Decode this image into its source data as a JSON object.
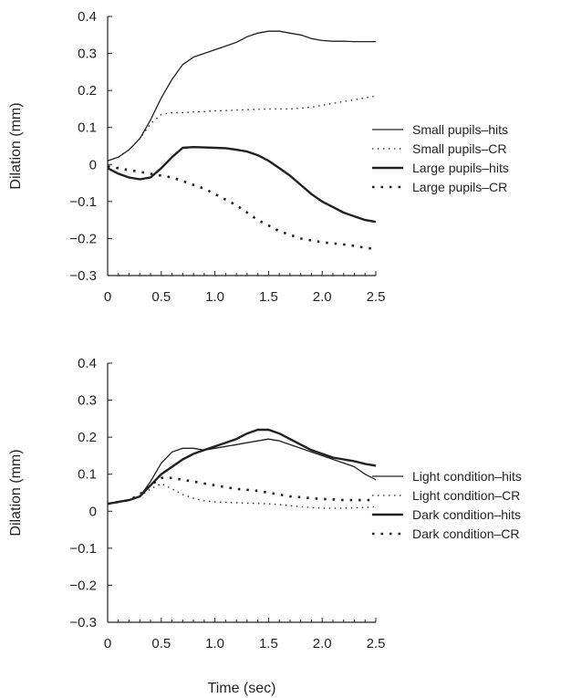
{
  "chart_data": [
    {
      "type": "line",
      "title": "",
      "xlabel": "",
      "ylabel": "Dilation (mm)",
      "xlim": [
        0,
        2.5
      ],
      "ylim": [
        -0.3,
        0.4
      ],
      "xticks": [
        "0",
        "0.5",
        "1.0",
        "1.5",
        "2.0",
        "2.5"
      ],
      "yticks": [
        "−0.3",
        "−0.2",
        "−0.1",
        "0",
        "0.1",
        "0.2",
        "0.3",
        "0.4"
      ],
      "grid": false,
      "legend_position": "right",
      "x": [
        0,
        0.1,
        0.2,
        0.3,
        0.4,
        0.5,
        0.6,
        0.7,
        0.8,
        0.9,
        1.0,
        1.1,
        1.2,
        1.3,
        1.4,
        1.5,
        1.6,
        1.7,
        1.8,
        1.9,
        2.0,
        2.1,
        2.2,
        2.3,
        2.4,
        2.5
      ],
      "series": [
        {
          "name": "Small pupils–hits",
          "style": "thin-solid",
          "values": [
            0.01,
            0.02,
            0.04,
            0.07,
            0.12,
            0.18,
            0.23,
            0.27,
            0.29,
            0.3,
            0.31,
            0.32,
            0.33,
            0.345,
            0.355,
            0.36,
            0.36,
            0.355,
            0.35,
            0.34,
            0.335,
            0.333,
            0.333,
            0.332,
            0.332,
            0.332
          ]
        },
        {
          "name": "Small pupils–CR",
          "style": "thin-dotted",
          "values": [
            0.01,
            0.02,
            0.04,
            0.07,
            0.11,
            0.135,
            0.14,
            0.14,
            0.142,
            0.143,
            0.145,
            0.146,
            0.147,
            0.148,
            0.149,
            0.15,
            0.15,
            0.15,
            0.152,
            0.155,
            0.16,
            0.165,
            0.17,
            0.175,
            0.18,
            0.185
          ]
        },
        {
          "name": "Large pupils–hits",
          "style": "thick-solid",
          "values": [
            -0.01,
            -0.025,
            -0.035,
            -0.04,
            -0.035,
            -0.01,
            0.02,
            0.045,
            0.047,
            0.046,
            0.045,
            0.044,
            0.04,
            0.035,
            0.025,
            0.01,
            -0.01,
            -0.03,
            -0.055,
            -0.08,
            -0.1,
            -0.115,
            -0.13,
            -0.14,
            -0.15,
            -0.155
          ]
        },
        {
          "name": "Large pupils–CR",
          "style": "thick-dotted",
          "values": [
            -0.005,
            -0.01,
            -0.015,
            -0.02,
            -0.025,
            -0.03,
            -0.035,
            -0.045,
            -0.055,
            -0.065,
            -0.08,
            -0.095,
            -0.11,
            -0.13,
            -0.15,
            -0.165,
            -0.18,
            -0.19,
            -0.2,
            -0.205,
            -0.21,
            -0.213,
            -0.216,
            -0.22,
            -0.225,
            -0.228
          ]
        }
      ]
    },
    {
      "type": "line",
      "title": "",
      "xlabel": "Time (sec)",
      "ylabel": "Dilation (mm)",
      "xlim": [
        0,
        2.5
      ],
      "ylim": [
        -0.3,
        0.4
      ],
      "xticks": [
        "0",
        "0.5",
        "1.0",
        "1.5",
        "2.0",
        "2.5"
      ],
      "yticks": [
        "−0.3",
        "−0.2",
        "−0.1",
        "0",
        "0.1",
        "0.2",
        "0.3",
        "0.4"
      ],
      "grid": false,
      "legend_position": "bottom-right",
      "x": [
        0,
        0.1,
        0.2,
        0.3,
        0.4,
        0.5,
        0.6,
        0.7,
        0.8,
        0.9,
        1.0,
        1.1,
        1.2,
        1.3,
        1.4,
        1.5,
        1.6,
        1.7,
        1.8,
        1.9,
        2.0,
        2.1,
        2.2,
        2.3,
        2.4,
        2.5
      ],
      "series": [
        {
          "name": "Light condition–hits",
          "style": "thin-solid",
          "values": [
            0.02,
            0.025,
            0.03,
            0.04,
            0.08,
            0.13,
            0.16,
            0.17,
            0.17,
            0.165,
            0.17,
            0.175,
            0.18,
            0.185,
            0.19,
            0.195,
            0.19,
            0.18,
            0.17,
            0.16,
            0.15,
            0.14,
            0.13,
            0.12,
            0.1,
            0.085
          ]
        },
        {
          "name": "Light condition–CR",
          "style": "thin-dotted",
          "values": [
            0.02,
            0.025,
            0.03,
            0.04,
            0.06,
            0.075,
            0.06,
            0.045,
            0.035,
            0.028,
            0.025,
            0.024,
            0.023,
            0.022,
            0.021,
            0.02,
            0.018,
            0.015,
            0.012,
            0.01,
            0.008,
            0.008,
            0.008,
            0.009,
            0.01,
            0.012
          ]
        },
        {
          "name": "Dark condition–hits",
          "style": "thick-solid",
          "values": [
            0.02,
            0.025,
            0.03,
            0.04,
            0.07,
            0.1,
            0.12,
            0.14,
            0.155,
            0.165,
            0.175,
            0.185,
            0.195,
            0.21,
            0.22,
            0.22,
            0.21,
            0.195,
            0.18,
            0.165,
            0.155,
            0.145,
            0.14,
            0.135,
            0.128,
            0.123
          ]
        },
        {
          "name": "Dark condition–CR",
          "style": "thick-dotted",
          "values": [
            0.02,
            0.025,
            0.03,
            0.045,
            0.07,
            0.09,
            0.09,
            0.085,
            0.08,
            0.075,
            0.07,
            0.065,
            0.06,
            0.058,
            0.055,
            0.05,
            0.045,
            0.04,
            0.038,
            0.035,
            0.033,
            0.032,
            0.03,
            0.03,
            0.03,
            0.03
          ]
        }
      ]
    }
  ]
}
